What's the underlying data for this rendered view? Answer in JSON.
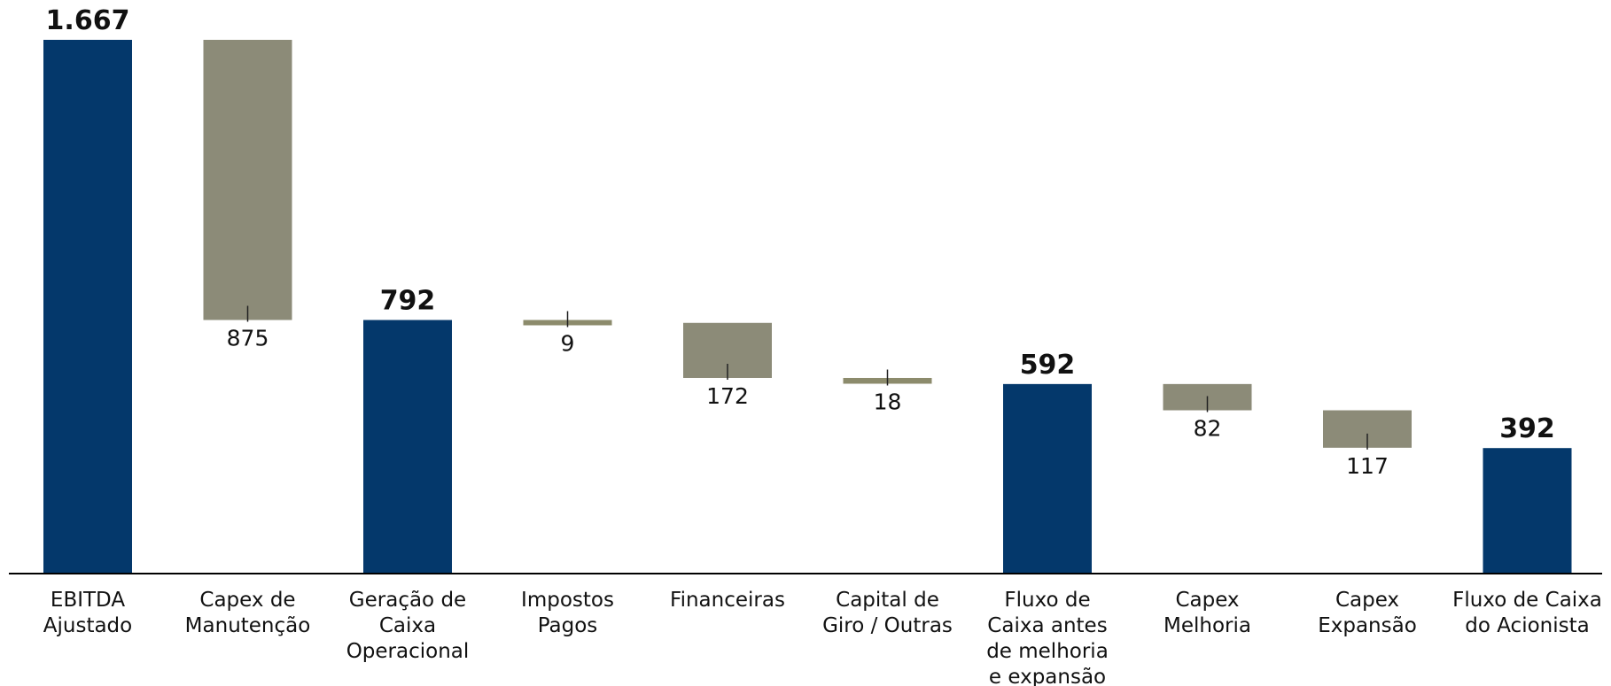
{
  "chart_data": {
    "type": "bar",
    "subtype": "waterfall",
    "title": "",
    "xlabel": "",
    "ylabel": "",
    "ylim": [
      0,
      1667
    ],
    "grid": false,
    "legend": "none",
    "colors": {
      "total": "#04386B",
      "decrease": "#8C8B78",
      "decrease_small": "#8C8B6C",
      "axis": "#000000"
    },
    "categories": [
      {
        "label": [
          "EBITDA",
          "Ajustado"
        ],
        "kind": "total",
        "value": 1667,
        "display": "1.667"
      },
      {
        "label": [
          "Capex de",
          "Manutenção"
        ],
        "kind": "decrease",
        "value": 875,
        "display": "875"
      },
      {
        "label": [
          "Geração de",
          "Caixa",
          "Operacional"
        ],
        "kind": "total",
        "value": 792,
        "display": "792"
      },
      {
        "label": [
          "Impostos",
          "Pagos"
        ],
        "kind": "decrease",
        "value": 9,
        "display": "9"
      },
      {
        "label": [
          "Financeiras"
        ],
        "kind": "decrease",
        "value": 172,
        "display": "172"
      },
      {
        "label": [
          "Capital de",
          "Giro / Outras"
        ],
        "kind": "decrease",
        "value": 18,
        "display": "18"
      },
      {
        "label": [
          "Fluxo de",
          "Caixa antes",
          "de melhoria",
          "e expansão"
        ],
        "kind": "total",
        "value": 592,
        "display": "592"
      },
      {
        "label": [
          "Capex",
          "Melhoria"
        ],
        "kind": "decrease",
        "value": 82,
        "display": "82"
      },
      {
        "label": [
          "Capex",
          "Expansão"
        ],
        "kind": "decrease",
        "value": 117,
        "display": "117"
      },
      {
        "label": [
          "Fluxo de Caixa",
          "do Acionista"
        ],
        "kind": "total",
        "value": 392,
        "display": "392"
      }
    ]
  }
}
